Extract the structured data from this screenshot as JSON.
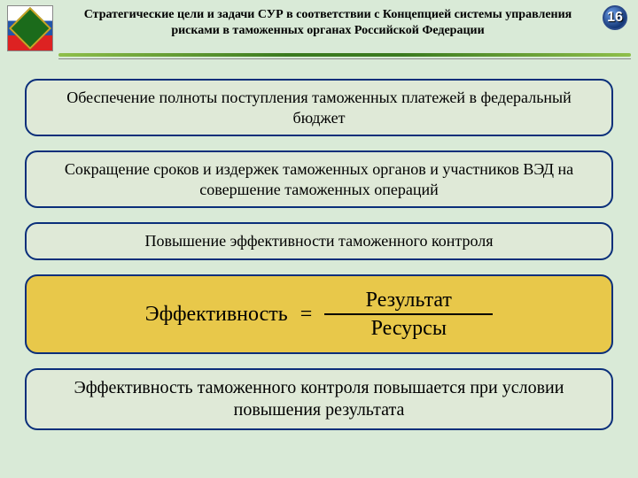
{
  "header": {
    "title": "Стратегические цели и задачи СУР в соответствии с Концепцией системы управления рисками в таможенных органах Российской Федерации",
    "page_number": "16"
  },
  "boxes": {
    "b1": "Обеспечение полноты поступления таможенных платежей в федеральный бюджет",
    "b2": "Сокращение сроков и издержек таможенных органов и участников ВЭД на совершение таможенных операций",
    "b3": "Повышение эффективности таможенного контроля",
    "b5": "Эффективность таможенного контроля повышается при условии повышения результата"
  },
  "formula": {
    "lhs": "Эффективность",
    "eq": "=",
    "numerator": "Результат",
    "denominator": "Ресурсы"
  },
  "colors": {
    "page_bg": "#d9ead7",
    "box_border": "#0b2f7a",
    "box_bg_blue": "#dfe9d7",
    "box_bg_gold": "#e8c84a"
  }
}
